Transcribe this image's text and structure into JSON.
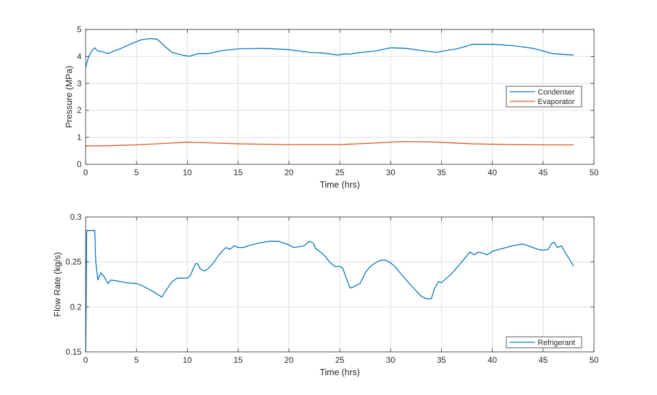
{
  "chart_data": [
    {
      "type": "line",
      "xlabel": "Time (hrs)",
      "ylabel": "Pressure (MPa)",
      "xlim": [
        0,
        50
      ],
      "ylim": [
        0,
        5
      ],
      "xticks": [
        0,
        5,
        10,
        15,
        20,
        25,
        30,
        35,
        40,
        45,
        50
      ],
      "yticks": [
        0,
        1,
        2,
        3,
        4,
        5
      ],
      "grid": true,
      "legend": "right",
      "series": [
        {
          "name": "Condenser",
          "color": "#0072BD",
          "x": [
            0,
            0.3,
            0.6,
            0.9,
            1.2,
            1.6,
            2.2,
            2.8,
            3.5,
            4.5,
            5.5,
            6.3,
            7.0,
            7.3,
            7.7,
            8.5,
            9.5,
            10.2,
            11.0,
            12.0,
            13.5,
            15.0,
            17.5,
            20.0,
            22.0,
            23.5,
            24.8,
            25.5,
            26.0,
            26.5,
            27.2,
            28.5,
            30.0,
            31.5,
            33.0,
            34.5,
            35.5,
            36.5,
            37.5,
            38.0,
            40.0,
            42.0,
            44.0,
            46.0,
            48.0
          ],
          "y": [
            3.6,
            4.0,
            4.2,
            4.32,
            4.2,
            4.18,
            4.1,
            4.2,
            4.3,
            4.47,
            4.62,
            4.66,
            4.64,
            4.55,
            4.4,
            4.15,
            4.05,
            4.0,
            4.1,
            4.1,
            4.22,
            4.28,
            4.3,
            4.25,
            4.15,
            4.12,
            4.05,
            4.1,
            4.08,
            4.12,
            4.15,
            4.2,
            4.32,
            4.3,
            4.22,
            4.15,
            4.22,
            4.28,
            4.38,
            4.45,
            4.45,
            4.4,
            4.3,
            4.1,
            4.05
          ]
        },
        {
          "name": "Evaporator",
          "color": "#D95319",
          "x": [
            0,
            2,
            5,
            8,
            10,
            12,
            15,
            20,
            25,
            28,
            31,
            34,
            38,
            42,
            45,
            48
          ],
          "y": [
            0.68,
            0.69,
            0.72,
            0.78,
            0.82,
            0.8,
            0.76,
            0.73,
            0.73,
            0.78,
            0.84,
            0.83,
            0.76,
            0.73,
            0.72,
            0.72
          ]
        }
      ]
    },
    {
      "type": "line",
      "xlabel": "Time (hrs)",
      "ylabel": "Flow Rate (kg/s)",
      "xlim": [
        0,
        50
      ],
      "ylim": [
        0.15,
        0.3
      ],
      "xticks": [
        0,
        5,
        10,
        15,
        20,
        25,
        30,
        35,
        40,
        45,
        50
      ],
      "yticks": [
        0.15,
        0.2,
        0.25,
        0.3
      ],
      "grid": true,
      "legend": "bottom-right",
      "series": [
        {
          "name": "Refrigerant",
          "color": "#0072BD",
          "x": [
            0,
            0.05,
            0.1,
            0.9,
            1.0,
            1.2,
            1.5,
            1.8,
            2.2,
            2.5,
            3.0,
            4.0,
            5.0,
            5.5,
            6.5,
            7.5,
            8.0,
            8.5,
            9.0,
            9.5,
            10.0,
            10.3,
            10.8,
            11.0,
            11.3,
            11.7,
            12.0,
            12.5,
            13.0,
            13.5,
            13.8,
            14.2,
            14.6,
            15.0,
            15.5,
            16.0,
            17.0,
            18.0,
            19.0,
            20.0,
            20.5,
            21.0,
            21.5,
            22.0,
            22.4,
            22.6,
            23.0,
            23.5,
            24.0,
            24.5,
            25.0,
            25.3,
            25.6,
            26.0,
            26.3,
            26.6,
            27.0,
            27.5,
            28.0,
            28.5,
            29.0,
            29.5,
            30.0,
            30.5,
            31.0,
            32.0,
            33.0,
            33.5,
            34.0,
            34.3,
            34.7,
            35.0,
            35.3,
            36.0,
            37.0,
            37.5,
            37.8,
            38.2,
            38.6,
            39.0,
            39.5,
            40.0,
            41.0,
            42.0,
            43.0,
            44.0,
            44.5,
            45.0,
            45.5,
            45.8,
            46.1,
            46.4,
            46.8,
            47.0,
            47.3,
            47.6,
            48.0
          ],
          "y": [
            0.15,
            0.2,
            0.285,
            0.285,
            0.25,
            0.23,
            0.238,
            0.234,
            0.226,
            0.23,
            0.229,
            0.227,
            0.226,
            0.224,
            0.218,
            0.211,
            0.22,
            0.228,
            0.232,
            0.232,
            0.232,
            0.235,
            0.248,
            0.248,
            0.242,
            0.24,
            0.242,
            0.248,
            0.256,
            0.263,
            0.266,
            0.264,
            0.268,
            0.266,
            0.266,
            0.268,
            0.271,
            0.273,
            0.273,
            0.269,
            0.266,
            0.267,
            0.268,
            0.273,
            0.271,
            0.265,
            0.262,
            0.257,
            0.25,
            0.245,
            0.245,
            0.243,
            0.233,
            0.221,
            0.222,
            0.224,
            0.226,
            0.238,
            0.245,
            0.249,
            0.252,
            0.252,
            0.249,
            0.244,
            0.237,
            0.224,
            0.212,
            0.209,
            0.209,
            0.22,
            0.228,
            0.227,
            0.23,
            0.237,
            0.25,
            0.257,
            0.261,
            0.258,
            0.261,
            0.26,
            0.258,
            0.262,
            0.265,
            0.268,
            0.27,
            0.266,
            0.264,
            0.263,
            0.264,
            0.27,
            0.272,
            0.266,
            0.268,
            0.264,
            0.258,
            0.253,
            0.245
          ]
        }
      ]
    }
  ]
}
